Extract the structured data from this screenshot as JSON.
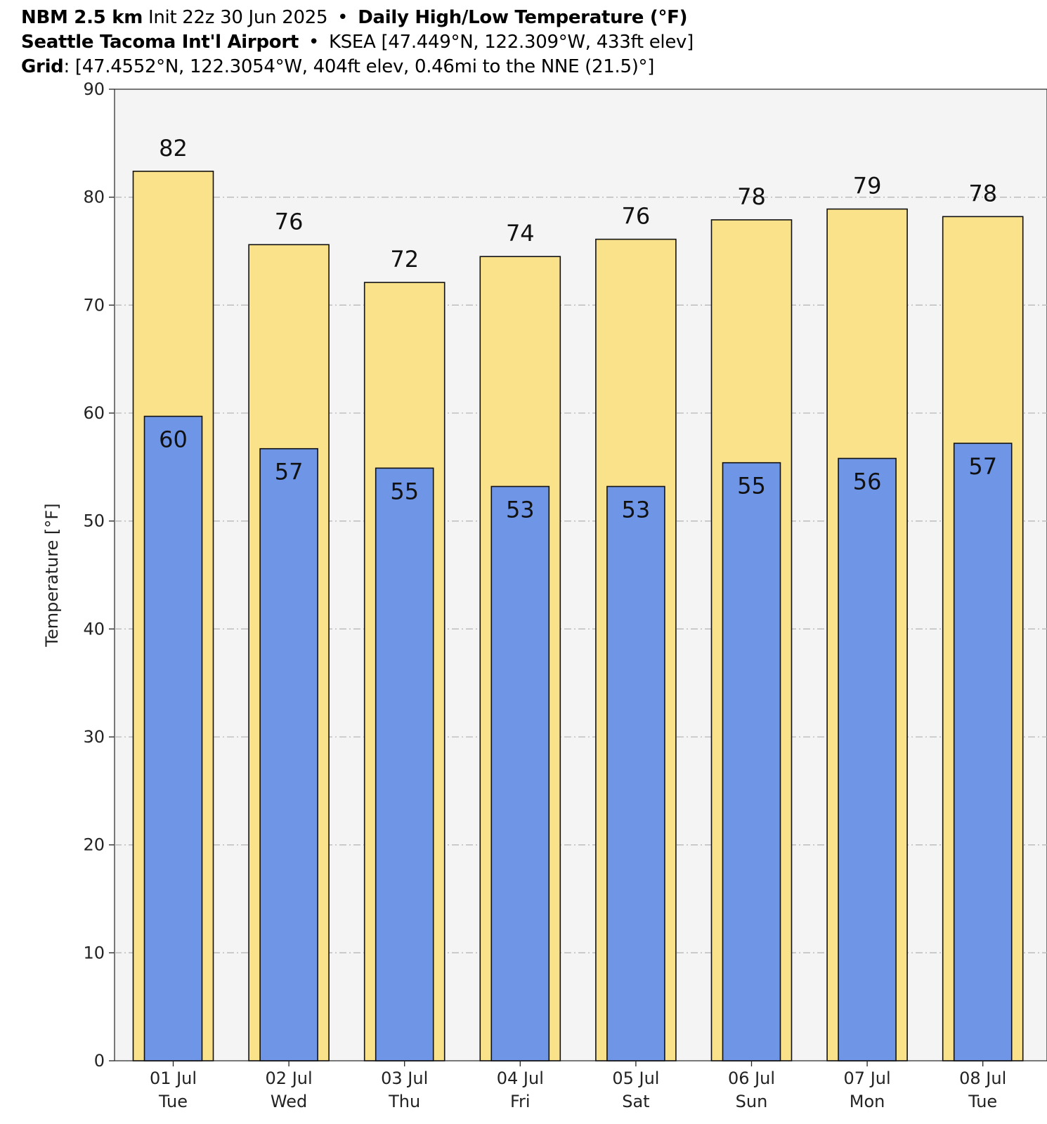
{
  "header": {
    "line1": {
      "model": "NBM 2.5 km",
      "init": "Init 22z 30 Jun 2025",
      "product": "Daily High/Low Temperature (°F)"
    },
    "line2": {
      "station": "Seattle Tacoma Int'l Airport",
      "info": "KSEA [47.449°N, 122.309°W, 433ft elev]"
    },
    "line3": {
      "label": "Grid",
      "info": ": [47.4552°N, 122.3054°W, 404ft elev, 0.46mi to the NNE (21.5)°]"
    },
    "bullet": "•"
  },
  "chart_data": {
    "type": "bar",
    "categories": [
      "01 Jul",
      "02 Jul",
      "03 Jul",
      "04 Jul",
      "05 Jul",
      "06 Jul",
      "07 Jul",
      "08 Jul"
    ],
    "weekdays": [
      "Tue",
      "Wed",
      "Thu",
      "Fri",
      "Sat",
      "Sun",
      "Mon",
      "Tue"
    ],
    "series": [
      {
        "values": [
          82.4,
          75.6,
          72.1,
          74.5,
          76.1,
          77.9,
          78.9,
          78.2
        ],
        "labels": [
          "82",
          "76",
          "72",
          "74",
          "76",
          "78",
          "79",
          "78"
        ],
        "color": "#fae28b"
      },
      {
        "values": [
          59.7,
          56.7,
          54.9,
          53.2,
          53.2,
          55.4,
          55.8,
          57.2
        ],
        "labels": [
          "60",
          "57",
          "55",
          "53",
          "53",
          "55",
          "56",
          "57"
        ],
        "color": "#6f95e6"
      }
    ],
    "ylabel": "Temperature [°F]",
    "ylim": [
      0,
      90
    ],
    "yticks": [
      0,
      10,
      20,
      30,
      40,
      50,
      60,
      70,
      80,
      90
    ],
    "grid": true,
    "plot_background": "#f4f4f4"
  }
}
